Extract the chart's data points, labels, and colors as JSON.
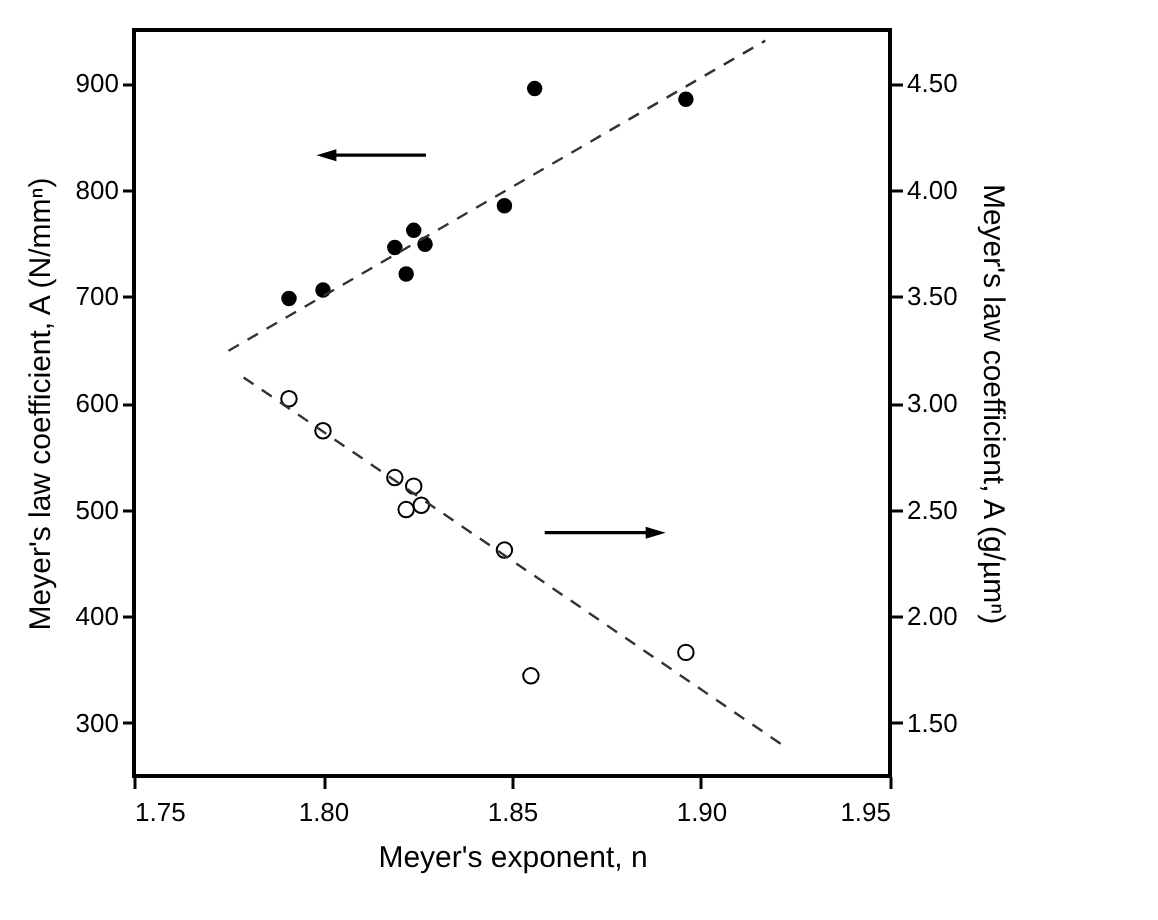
{
  "chart_data": {
    "type": "scatter",
    "xlabel": "Meyer's exponent, n",
    "ylabel": "Meyer's law coefficient, A (N/mmⁿ)",
    "y2label": "Meyer's law coefficient, A (g/µmⁿ)",
    "xlim": [
      1.75,
      1.95
    ],
    "xticks": [
      1.75,
      {
        "value": 1.8,
        "label": "1.80"
      },
      1.85,
      {
        "value": 1.9,
        "label": "1.90"
      },
      1.95
    ],
    "ylim": [
      250,
      950
    ],
    "yticks": [
      300,
      400,
      500,
      600,
      700,
      800,
      900
    ],
    "y2lim": [
      1.25,
      4.75
    ],
    "y2ticks": [
      {
        "value": 1.5,
        "label": "1.50"
      },
      {
        "value": 2,
        "label": "2.00"
      },
      {
        "value": 2.5,
        "label": "2.50"
      },
      {
        "value": 3,
        "label": "3.00"
      },
      {
        "value": 3.5,
        "label": "3.50"
      },
      {
        "value": 4,
        "label": "4.00"
      },
      {
        "value": 4.5,
        "label": "4.50"
      }
    ],
    "grid": false,
    "series": [
      {
        "color": "#000000",
        "marker": "circle",
        "x": [
          1.791,
          1.8,
          1.819,
          1.824,
          1.827,
          1.822,
          1.848,
          1.856,
          1.896
        ],
        "values": [
          698,
          706,
          746,
          762,
          749,
          721,
          785,
          895,
          885
        ]
      },
      {
        "color": "#000000",
        "marker": "circle",
        "axis": "y2",
        "x": [
          1.791,
          1.8,
          1.819,
          1.824,
          1.822,
          1.826,
          1.848,
          1.855,
          1.896
        ],
        "values": [
          3.02,
          2.87,
          2.65,
          2.61,
          2.5,
          2.52,
          2.31,
          1.72,
          1.83
        ]
      },
      {
        "type": "line",
        "color": "#333333",
        "line_style": "dashed",
        "marker": "none",
        "x": [
          1.775,
          1.917
        ],
        "values": [
          649,
          940
        ]
      },
      {
        "type": "line",
        "color": "#333333",
        "line_style": "dashed",
        "marker": "none",
        "axis": "y2",
        "x": [
          1.779,
          1.922
        ],
        "values": [
          3.12,
          1.39
        ]
      }
    ]
  }
}
